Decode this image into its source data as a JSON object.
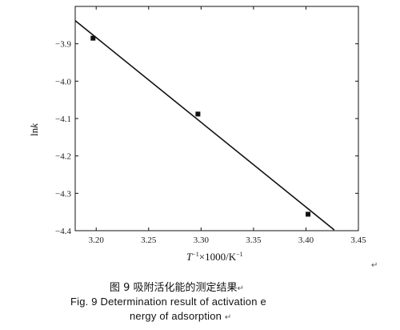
{
  "chart_data": {
    "type": "scatter",
    "xlim": [
      3.18,
      3.45
    ],
    "ylim": [
      -4.4,
      -3.8
    ],
    "xticks": [
      3.2,
      3.25,
      3.3,
      3.35,
      3.4,
      3.45
    ],
    "yticks": [
      -3.9,
      -4.0,
      -4.1,
      -4.2,
      -4.3,
      -4.4
    ],
    "xtick_labels": [
      "3.20",
      "3.25",
      "3.30",
      "3.35",
      "3.40",
      "3.45"
    ],
    "ytick_labels": [
      "−3.9",
      "−4.0",
      "−4.1",
      "−4.2",
      "−4.3",
      "−4.4"
    ],
    "xlabel_base": "T",
    "xlabel_sup": "−1",
    "xlabel_tail": "×1000/K",
    "xlabel_sup2": "−1",
    "ylabel_base": "ln",
    "ylabel_italic": "k",
    "points": [
      {
        "x": 3.197,
        "y": -3.885
      },
      {
        "x": 3.297,
        "y": -4.088
      },
      {
        "x": 3.402,
        "y": -4.356
      }
    ],
    "fit_line": [
      {
        "x": 3.18,
        "y": -3.838
      },
      {
        "x": 3.427,
        "y": -4.398
      }
    ],
    "grid": false
  },
  "caption": {
    "cn": "图 9  吸附活化能的测定结果",
    "en_line1": "Fig. 9    Determination result of activation  e",
    "en_line2": "nergy of adsorption"
  },
  "marks": {
    "return_symbol": "↵"
  }
}
